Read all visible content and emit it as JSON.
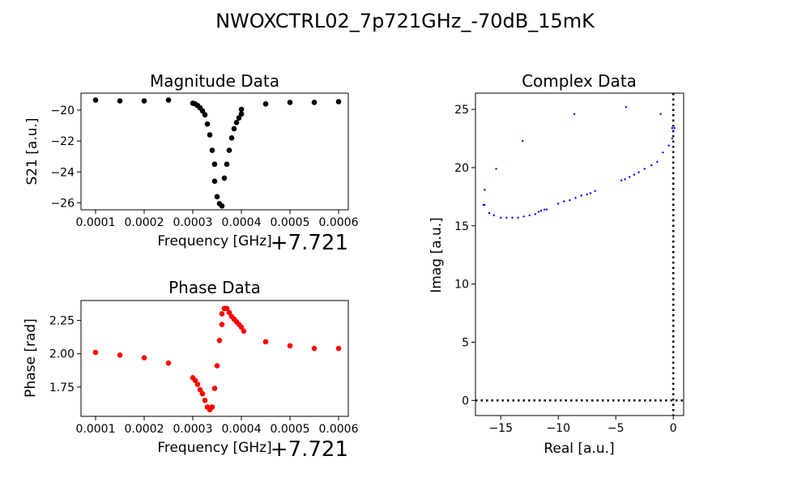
{
  "figure_title": "NWOXCTRL02_7p721GHz_-70dB_15mK",
  "chart_data": [
    {
      "id": "magnitude",
      "type": "scatter",
      "title": "Magnitude Data",
      "xlabel": "Frequency [GHz]",
      "ylabel": "S21 [a.u.]",
      "x_offset_label": "+7.721",
      "xlim": [
        7e-05,
        0.00062
      ],
      "ylim": [
        -26.45,
        -18.9
      ],
      "xticks": [
        0.0001,
        0.0002,
        0.0003,
        0.0004,
        0.0005,
        0.0006
      ],
      "xtick_labels": [
        "0.0001",
        "0.0002",
        "0.0003",
        "0.0004",
        "0.0005",
        "0.0006"
      ],
      "yticks": [
        -20,
        -22,
        -24,
        -26
      ],
      "ytick_labels": [
        "−20",
        "−22",
        "−24",
        "−26"
      ],
      "color": "#000000",
      "x": [
        0.0001,
        0.00015,
        0.0002,
        0.00025,
        0.0003,
        0.000305,
        0.00031,
        0.000315,
        0.00032,
        0.000325,
        0.00033,
        0.000335,
        0.00034,
        0.000345,
        0.000345,
        0.00035,
        0.000355,
        0.00036,
        0.000365,
        0.00037,
        0.000375,
        0.00038,
        0.000385,
        0.00039,
        0.000395,
        0.0004,
        0.0004,
        0.00045,
        0.0005,
        0.00055,
        0.0006
      ],
      "y": [
        -19.35,
        -19.4,
        -19.4,
        -19.35,
        -19.55,
        -19.6,
        -19.7,
        -19.85,
        -20.05,
        -20.3,
        -20.9,
        -21.6,
        -22.6,
        -23.5,
        -24.6,
        -25.6,
        -26.05,
        -26.2,
        -24.4,
        -23.5,
        -22.6,
        -21.8,
        -21.2,
        -20.8,
        -20.5,
        -20.25,
        -19.95,
        -19.6,
        -19.5,
        -19.5,
        -19.45
      ]
    },
    {
      "id": "phase",
      "type": "scatter",
      "title": "Phase Data",
      "xlabel": "Frequency [GHz]",
      "ylabel": "Phase [rad]",
      "x_offset_label": "+7.721",
      "xlim": [
        7e-05,
        0.00062
      ],
      "ylim": [
        1.53,
        2.4
      ],
      "xticks": [
        0.0001,
        0.0002,
        0.0003,
        0.0004,
        0.0005,
        0.0006
      ],
      "xtick_labels": [
        "0.0001",
        "0.0002",
        "0.0003",
        "0.0004",
        "0.0005",
        "0.0006"
      ],
      "yticks": [
        2.25,
        2.0,
        1.75
      ],
      "ytick_labels": [
        "2.25",
        "2.00",
        "1.75"
      ],
      "color": "#ff0000",
      "x": [
        0.0001,
        0.00015,
        0.0002,
        0.00025,
        0.0003,
        0.000305,
        0.00031,
        0.000315,
        0.00032,
        0.000325,
        0.00033,
        0.000335,
        0.00034,
        0.000345,
        0.00035,
        0.000355,
        0.00036,
        0.00036,
        0.000365,
        0.00037,
        0.000375,
        0.00038,
        0.000385,
        0.00039,
        0.000395,
        0.0004,
        0.000405,
        0.00045,
        0.0005,
        0.00055,
        0.0006
      ],
      "y": [
        2.01,
        1.99,
        1.97,
        1.93,
        1.82,
        1.8,
        1.77,
        1.73,
        1.7,
        1.65,
        1.6,
        1.58,
        1.6,
        1.74,
        1.91,
        2.1,
        2.22,
        2.3,
        2.34,
        2.34,
        2.31,
        2.28,
        2.26,
        2.24,
        2.22,
        2.2,
        2.17,
        2.09,
        2.06,
        2.04,
        2.04
      ]
    },
    {
      "id": "complex",
      "type": "scatter",
      "title": "Complex Data",
      "xlabel": "Real [a.u.]",
      "ylabel": "Imag [a.u.]",
      "xlim": [
        -17.2,
        0.9
      ],
      "ylim": [
        -1.3,
        26.4
      ],
      "xticks": [
        -15,
        -10,
        -5,
        0
      ],
      "xtick_labels": [
        "−15",
        "−10",
        "−5",
        "0"
      ],
      "yticks": [
        25,
        20,
        15,
        10,
        5,
        0
      ],
      "ytick_labels": [
        "25",
        "20",
        "15",
        "10",
        "5",
        "0"
      ],
      "color": "#0000ff",
      "reference_lines": "dotted black at x=0 and y=0",
      "x": [
        -16.4,
        -16.5,
        -16.0,
        -15.6,
        -15.0,
        -14.5,
        -14.0,
        -13.5,
        -13.0,
        -12.5,
        -12.0,
        -11.7,
        -11.5,
        -11.2,
        -11.0,
        -10.0,
        -9.5,
        -9.0,
        -8.5,
        -8.0,
        -7.5,
        -7.2,
        -6.8,
        -4.5,
        -4.2,
        -3.8,
        -3.4,
        -3.0,
        -2.5,
        -1.9,
        -1.4,
        -0.9,
        -0.4,
        -0.1,
        0.0,
        0.1,
        -4.1,
        -8.6,
        -13.1,
        -15.4,
        -16.4,
        -1.1,
        -0.1
      ],
      "y": [
        18.1,
        16.8,
        16.1,
        15.9,
        15.7,
        15.7,
        15.7,
        15.7,
        15.8,
        15.9,
        16.0,
        16.2,
        16.3,
        16.4,
        16.4,
        16.9,
        17.1,
        17.2,
        17.4,
        17.6,
        17.7,
        17.8,
        18.0,
        18.9,
        19.0,
        19.2,
        19.4,
        19.6,
        19.9,
        20.2,
        20.5,
        21.3,
        21.9,
        22.5,
        23.1,
        23.4,
        25.2,
        24.6,
        22.3,
        19.9,
        16.8,
        24.6,
        23.4
      ]
    }
  ]
}
